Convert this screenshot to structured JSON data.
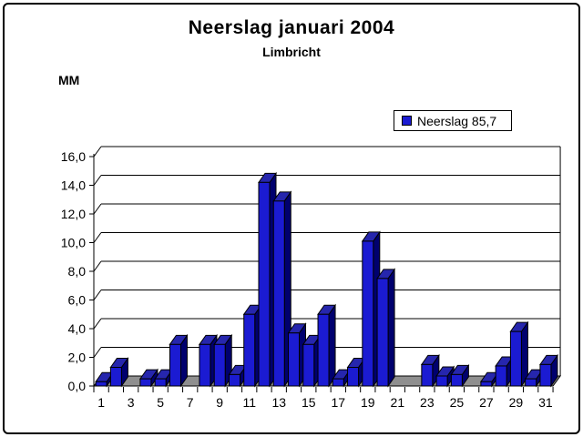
{
  "chart_data": {
    "type": "bar",
    "effect": "3d-column",
    "title": "Neerslag januari 2004",
    "subtitle": "Limbricht",
    "ylabel": "MM",
    "xlabel": "",
    "legend": {
      "label": "Neerslag 85,7",
      "position": "top-right",
      "marker": "blue-square-icon"
    },
    "categories": [
      1,
      2,
      3,
      4,
      5,
      6,
      7,
      8,
      9,
      10,
      11,
      12,
      13,
      14,
      15,
      16,
      17,
      18,
      19,
      20,
      21,
      22,
      23,
      24,
      25,
      26,
      27,
      28,
      29,
      30,
      31
    ],
    "series": [
      {
        "name": "Neerslag",
        "total": 85.7,
        "values": [
          0.3,
          1.3,
          0,
          0.5,
          0.5,
          2.9,
          0,
          2.9,
          2.9,
          0.8,
          5.0,
          14.2,
          12.9,
          3.7,
          2.9,
          5.0,
          0.5,
          1.3,
          10.1,
          7.5,
          0,
          0,
          1.5,
          0.7,
          0.8,
          0,
          0.3,
          1.4,
          3.8,
          0.5,
          1.5
        ]
      }
    ],
    "ylim": [
      0,
      16
    ],
    "y_tick_step": 2,
    "y_tick_labels": [
      "0,0",
      "2,0",
      "4,0",
      "6,0",
      "8,0",
      "10,0",
      "12,0",
      "14,0",
      "16,0"
    ],
    "x_tick_labels": [
      "1",
      "3",
      "5",
      "7",
      "9",
      "11",
      "13",
      "15",
      "17",
      "19",
      "21",
      "23",
      "25",
      "27",
      "29",
      "31"
    ],
    "grid": true,
    "decimal_separator": ",",
    "colors": {
      "bar_front": "#1b1bd2",
      "bar_side": "#00006e",
      "bar_top": "#2626ad",
      "floor": "#8f8f8f",
      "outline": "#000000",
      "background": "#ffffff",
      "frame_border": "#000000",
      "text": "#000000"
    }
  }
}
